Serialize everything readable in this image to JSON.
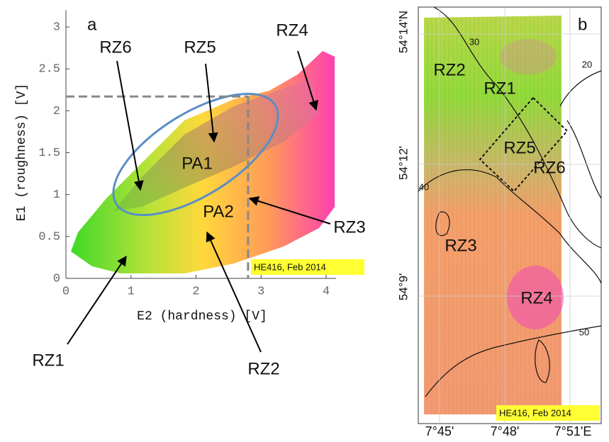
{
  "chart_data": {
    "type": "scatter",
    "panel_label": "a",
    "xlabel": "E2 (hardness) [V]",
    "ylabel": "E1 (roughness) [V]",
    "xlim": [
      0,
      4.15
    ],
    "ylim": [
      0,
      3.2
    ],
    "xticks": [
      0,
      1,
      2,
      3,
      4
    ],
    "yticks": [
      0,
      0.5,
      1,
      1.5,
      2,
      2.5,
      3
    ],
    "reference_lines": {
      "x": 2.8,
      "y": 2.17
    },
    "annotations": [
      "RZ6",
      "RZ5",
      "RZ4",
      "PA1",
      "PA2",
      "RZ3",
      "RZ2",
      "RZ1"
    ],
    "stamp": "HE416, Feb 2014"
  },
  "map": {
    "panel_label": "b",
    "lat_labels": [
      "54°14'N",
      "54°12'",
      "54°9'"
    ],
    "lon_labels": [
      "7°45'",
      "7°48'",
      "7°51'E"
    ],
    "contour_labels": [
      "30",
      "20",
      "40",
      "50"
    ],
    "zones": [
      "RZ2",
      "RZ1",
      "RZ5",
      "RZ6",
      "RZ3",
      "RZ4"
    ],
    "stamp": "HE416, Feb 2014"
  }
}
